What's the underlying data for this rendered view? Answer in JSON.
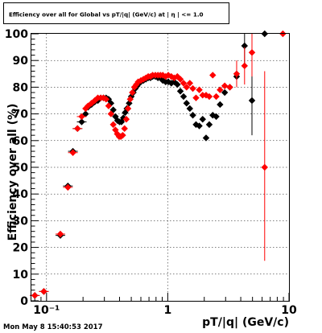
{
  "chart_data": {
    "type": "scatter",
    "title": "Efficiency over all for Global vs pT/|q| (GeV/c) at | η | <= 1.0",
    "xlabel": "pT/|q| (GeV/c)",
    "ylabel": "Efficiency over all (%)",
    "xscale": "log",
    "xlim": [
      0.075,
      10
    ],
    "ylim": [
      0,
      100
    ],
    "x_tick_labels": [
      "10⁻¹",
      "1",
      "10"
    ],
    "y_ticks": [
      0,
      10,
      20,
      30,
      40,
      50,
      60,
      70,
      80,
      90,
      100
    ],
    "grid": true,
    "legend": "none",
    "series": [
      {
        "color": "#000000",
        "marker": "diamond",
        "points": [
          {
            "x": 0.08,
            "y": 2
          },
          {
            "x": 0.095,
            "y": 3.5
          },
          {
            "x": 0.13,
            "y": 24.5
          },
          {
            "x": 0.15,
            "y": 43
          },
          {
            "x": 0.165,
            "y": 56
          },
          {
            "x": 0.18,
            "y": 64.5
          },
          {
            "x": 0.195,
            "y": 67
          },
          {
            "x": 0.21,
            "y": 70
          },
          {
            "x": 0.22,
            "y": 72.5
          },
          {
            "x": 0.235,
            "y": 73.5
          },
          {
            "x": 0.25,
            "y": 74.5
          },
          {
            "x": 0.265,
            "y": 75
          },
          {
            "x": 0.28,
            "y": 76
          },
          {
            "x": 0.295,
            "y": 76
          },
          {
            "x": 0.31,
            "y": 76
          },
          {
            "x": 0.325,
            "y": 75.5
          },
          {
            "x": 0.34,
            "y": 74
          },
          {
            "x": 0.355,
            "y": 71.5
          },
          {
            "x": 0.37,
            "y": 69
          },
          {
            "x": 0.385,
            "y": 67.5
          },
          {
            "x": 0.4,
            "y": 67
          },
          {
            "x": 0.415,
            "y": 67
          },
          {
            "x": 0.43,
            "y": 68.5
          },
          {
            "x": 0.445,
            "y": 70.5
          },
          {
            "x": 0.46,
            "y": 72
          },
          {
            "x": 0.48,
            "y": 74
          },
          {
            "x": 0.5,
            "y": 76.5
          },
          {
            "x": 0.52,
            "y": 78
          },
          {
            "x": 0.54,
            "y": 79.5
          },
          {
            "x": 0.56,
            "y": 80.5
          },
          {
            "x": 0.58,
            "y": 81.5
          },
          {
            "x": 0.6,
            "y": 82
          },
          {
            "x": 0.63,
            "y": 82.5
          },
          {
            "x": 0.66,
            "y": 83
          },
          {
            "x": 0.69,
            "y": 83.5
          },
          {
            "x": 0.72,
            "y": 83.5
          },
          {
            "x": 0.75,
            "y": 84
          },
          {
            "x": 0.79,
            "y": 84
          },
          {
            "x": 0.83,
            "y": 83.5
          },
          {
            "x": 0.87,
            "y": 83.5
          },
          {
            "x": 0.91,
            "y": 82.5
          },
          {
            "x": 0.96,
            "y": 82
          },
          {
            "x": 1.01,
            "y": 82
          },
          {
            "x": 1.07,
            "y": 81.5
          },
          {
            "x": 1.13,
            "y": 82
          },
          {
            "x": 1.2,
            "y": 81
          },
          {
            "x": 1.27,
            "y": 78.5
          },
          {
            "x": 1.35,
            "y": 76.5
          },
          {
            "x": 1.43,
            "y": 74
          },
          {
            "x": 1.52,
            "y": 72
          },
          {
            "x": 1.61,
            "y": 69.5
          },
          {
            "x": 1.71,
            "y": 66
          },
          {
            "x": 1.82,
            "y": 65.5
          },
          {
            "x": 1.94,
            "y": 68
          },
          {
            "x": 2.07,
            "y": 61
          },
          {
            "x": 2.2,
            "y": 66
          },
          {
            "x": 2.35,
            "y": 69.5
          },
          {
            "x": 2.51,
            "y": 69
          },
          {
            "x": 2.7,
            "y": 73.5
          },
          {
            "x": 2.95,
            "y": 78
          },
          {
            "x": 3.25,
            "y": 80
          },
          {
            "x": 3.7,
            "y": 84
          },
          {
            "x": 4.3,
            "y": 95.5
          },
          {
            "x": 4.95,
            "y": 75
          },
          {
            "x": 6.3,
            "y": 100
          }
        ]
      },
      {
        "color": "#ff0000",
        "marker": "diamond",
        "points": [
          {
            "x": 0.08,
            "y": 2
          },
          {
            "x": 0.095,
            "y": 3.5
          },
          {
            "x": 0.13,
            "y": 25
          },
          {
            "x": 0.15,
            "y": 42.5
          },
          {
            "x": 0.165,
            "y": 55.5
          },
          {
            "x": 0.18,
            "y": 64.5
          },
          {
            "x": 0.195,
            "y": 69
          },
          {
            "x": 0.21,
            "y": 72
          },
          {
            "x": 0.22,
            "y": 73
          },
          {
            "x": 0.235,
            "y": 74
          },
          {
            "x": 0.25,
            "y": 75
          },
          {
            "x": 0.265,
            "y": 76
          },
          {
            "x": 0.28,
            "y": 76
          },
          {
            "x": 0.295,
            "y": 76
          },
          {
            "x": 0.31,
            "y": 75.5
          },
          {
            "x": 0.325,
            "y": 73
          },
          {
            "x": 0.34,
            "y": 70
          },
          {
            "x": 0.355,
            "y": 66
          },
          {
            "x": 0.37,
            "y": 64
          },
          {
            "x": 0.383,
            "y": 62.5
          },
          {
            "x": 0.397,
            "y": 61.5
          },
          {
            "x": 0.41,
            "y": 61.5
          },
          {
            "x": 0.425,
            "y": 62
          },
          {
            "x": 0.44,
            "y": 64.5
          },
          {
            "x": 0.455,
            "y": 68
          },
          {
            "x": 0.47,
            "y": 72
          },
          {
            "x": 0.49,
            "y": 75.5
          },
          {
            "x": 0.51,
            "y": 78
          },
          {
            "x": 0.53,
            "y": 80
          },
          {
            "x": 0.55,
            "y": 81
          },
          {
            "x": 0.57,
            "y": 82
          },
          {
            "x": 0.6,
            "y": 82.5
          },
          {
            "x": 0.63,
            "y": 83
          },
          {
            "x": 0.66,
            "y": 83.5
          },
          {
            "x": 0.69,
            "y": 84
          },
          {
            "x": 0.72,
            "y": 84
          },
          {
            "x": 0.75,
            "y": 84.5
          },
          {
            "x": 0.79,
            "y": 84.5
          },
          {
            "x": 0.83,
            "y": 84.5
          },
          {
            "x": 0.87,
            "y": 84.5
          },
          {
            "x": 0.91,
            "y": 84.5
          },
          {
            "x": 0.96,
            "y": 84
          },
          {
            "x": 1.01,
            "y": 84.5
          },
          {
            "x": 1.07,
            "y": 84
          },
          {
            "x": 1.13,
            "y": 83.5
          },
          {
            "x": 1.2,
            "y": 84
          },
          {
            "x": 1.27,
            "y": 83
          },
          {
            "x": 1.35,
            "y": 81.5
          },
          {
            "x": 1.43,
            "y": 80
          },
          {
            "x": 1.52,
            "y": 81.5
          },
          {
            "x": 1.61,
            "y": 79.5
          },
          {
            "x": 1.71,
            "y": 76
          },
          {
            "x": 1.82,
            "y": 79
          },
          {
            "x": 1.94,
            "y": 77
          },
          {
            "x": 2.07,
            "y": 77
          },
          {
            "x": 2.2,
            "y": 76.5
          },
          {
            "x": 2.35,
            "y": 84.5
          },
          {
            "x": 2.51,
            "y": 76.5
          },
          {
            "x": 2.7,
            "y": 79
          },
          {
            "x": 2.95,
            "y": 80.5
          },
          {
            "x": 3.25,
            "y": 80
          },
          {
            "x": 3.7,
            "y": 85
          },
          {
            "x": 4.3,
            "y": 88
          },
          {
            "x": 4.95,
            "y": 93
          },
          {
            "x": 6.3,
            "y": 50
          },
          {
            "x": 8.9,
            "y": 100
          }
        ]
      }
    ]
  },
  "footer": {
    "timestamp": "Mon May  8 15:40:53 2017"
  }
}
